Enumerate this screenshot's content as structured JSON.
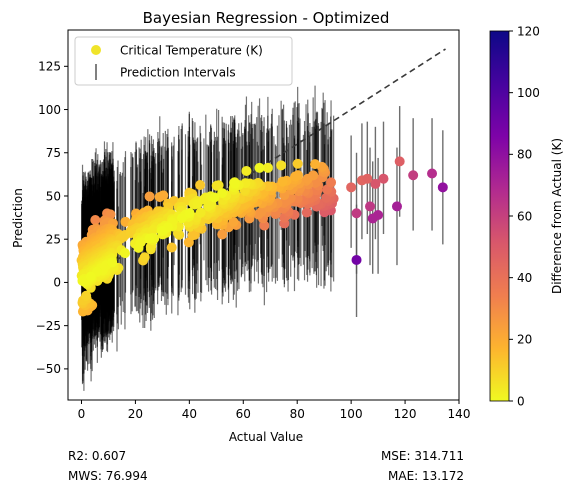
{
  "chart_data": {
    "type": "scatter",
    "title": "Bayesian Regression - Optimized",
    "xlabel": "Actual Value",
    "ylabel": "Prediction",
    "xlim": [
      -5,
      140
    ],
    "ylim": [
      -68,
      146
    ],
    "xticks": [
      0,
      20,
      40,
      60,
      80,
      100,
      120,
      140
    ],
    "yticks": [
      -50,
      -25,
      0,
      25,
      50,
      75,
      100,
      125
    ],
    "legend": {
      "position": "top-left",
      "entries": [
        "Critical Temperature (K)",
        "Prediction Intervals"
      ]
    },
    "colorbar": {
      "label": "Difference from Actual (K)",
      "range": [
        0,
        120
      ],
      "ticks": [
        0,
        20,
        40,
        60,
        80,
        100,
        120
      ],
      "colormap": "plasma_r",
      "stops": [
        "#f0f921",
        "#fdb42f",
        "#f07e4f",
        "#d8576b",
        "#b12a90",
        "#7e03a8",
        "#46039f",
        "#0d0887"
      ]
    },
    "reference_line": {
      "x": [
        0,
        135
      ],
      "y": [
        0,
        135
      ],
      "style": "dashed",
      "color": "#3a3a3a"
    },
    "error_band": {
      "x_range": [
        0,
        94
      ],
      "color": "#000000",
      "note": "dense prediction intervals roughly ±40 K around predictions"
    },
    "series_outliers": [
      {
        "x": 100,
        "y": 55,
        "lo": 20,
        "hi": 85,
        "diff": 45
      },
      {
        "x": 102,
        "y": 13,
        "lo": -20,
        "hi": 45,
        "diff": 89
      },
      {
        "x": 102,
        "y": 40,
        "lo": 5,
        "hi": 75,
        "diff": 62
      },
      {
        "x": 104,
        "y": 59,
        "lo": 25,
        "hi": 92,
        "diff": 45
      },
      {
        "x": 106,
        "y": 60,
        "lo": 28,
        "hi": 93,
        "diff": 46
      },
      {
        "x": 107,
        "y": 44,
        "lo": 10,
        "hi": 78,
        "diff": 63
      },
      {
        "x": 108,
        "y": 37,
        "lo": 5,
        "hi": 70,
        "diff": 71
      },
      {
        "x": 109,
        "y": 57,
        "lo": 25,
        "hi": 90,
        "diff": 52
      },
      {
        "x": 110,
        "y": 39,
        "lo": 5,
        "hi": 72,
        "diff": 71
      },
      {
        "x": 112,
        "y": 60,
        "lo": 28,
        "hi": 93,
        "diff": 52
      },
      {
        "x": 117,
        "y": 44,
        "lo": 10,
        "hi": 78,
        "diff": 73
      },
      {
        "x": 118,
        "y": 70,
        "lo": 38,
        "hi": 102,
        "diff": 48
      },
      {
        "x": 123,
        "y": 62,
        "lo": 30,
        "hi": 95,
        "diff": 61
      },
      {
        "x": 130,
        "y": 63,
        "lo": 30,
        "hi": 95,
        "diff": 67
      },
      {
        "x": 134,
        "y": 55,
        "lo": 22,
        "hi": 88,
        "diff": 79
      }
    ]
  },
  "metrics": {
    "r2": "R2: 0.607",
    "mse": "MSE: 314.711",
    "mws": "MWS: 76.994",
    "mae": "MAE: 13.172"
  }
}
